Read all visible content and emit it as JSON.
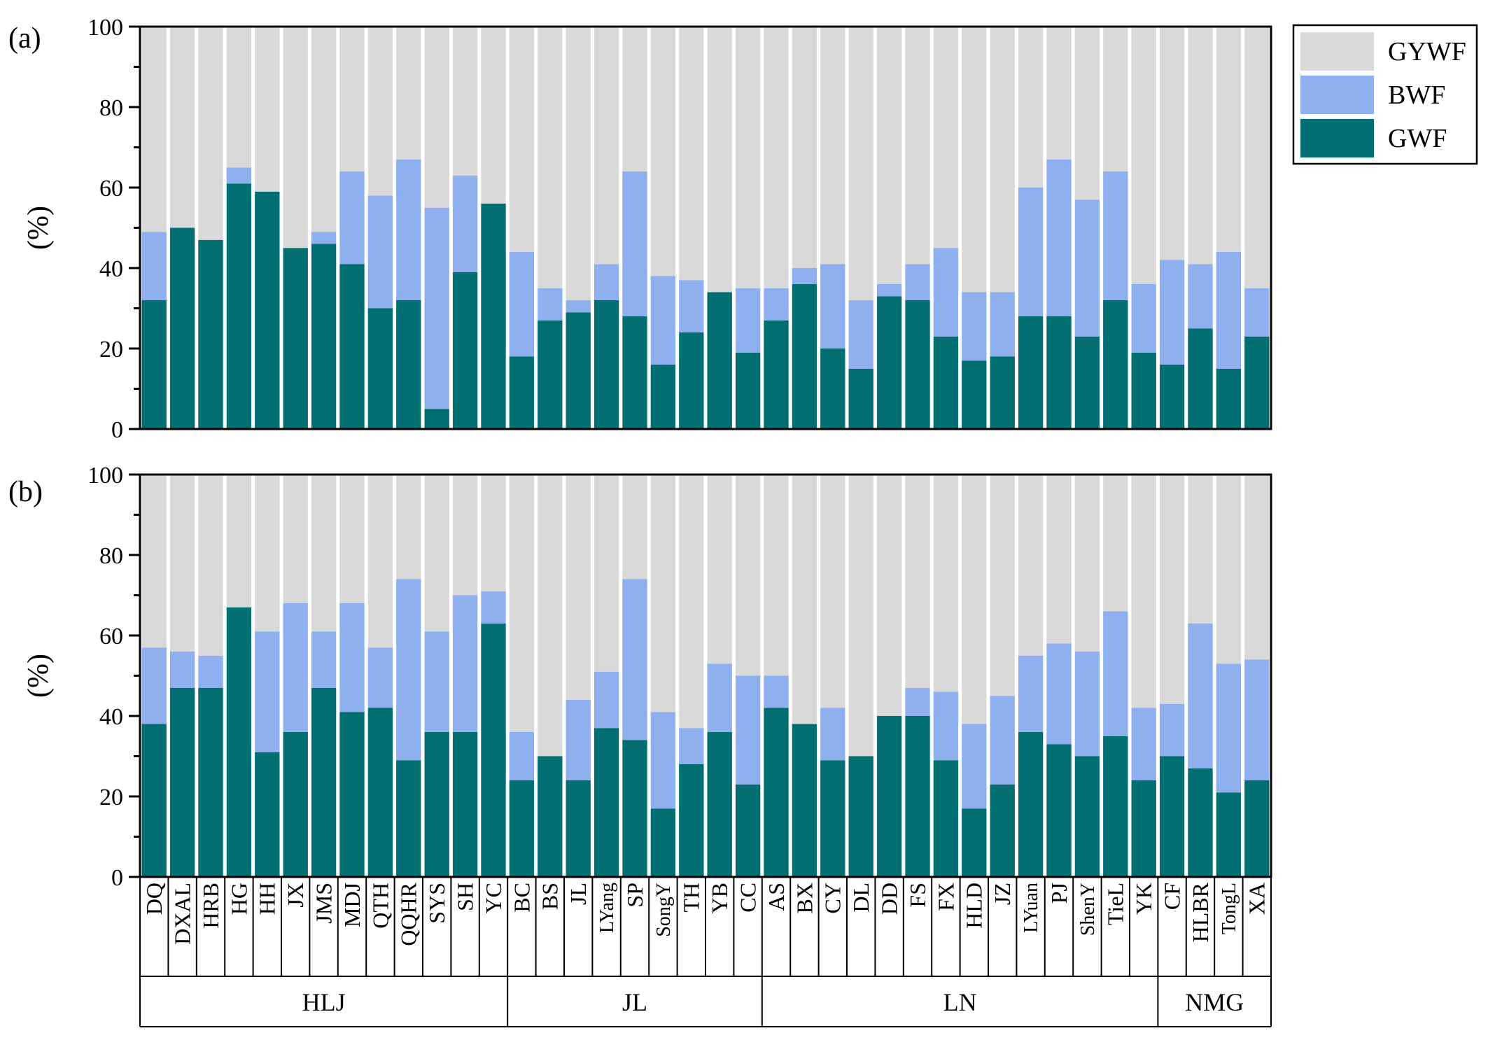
{
  "chart_data": [
    {
      "panel_label": "(a)",
      "type": "bar",
      "stacked": true,
      "ylabel": "(%)",
      "ylim": [
        0,
        100
      ],
      "yticks": [
        0,
        20,
        40,
        60,
        80,
        100
      ],
      "series": [
        {
          "name": "GWF",
          "color": "#016E72",
          "values": [
            32,
            50,
            47,
            61,
            59,
            45,
            46,
            41,
            30,
            32,
            5,
            39,
            56,
            18,
            27,
            29,
            32,
            28,
            16,
            24,
            34,
            19,
            27,
            36,
            20,
            15,
            33,
            32,
            23,
            17,
            18,
            28,
            28,
            23,
            32,
            19,
            16,
            25,
            15,
            23
          ]
        },
        {
          "name": "BWF",
          "color": "#8EB0EF",
          "values": [
            17,
            0,
            0,
            4,
            0,
            0,
            3,
            23,
            28,
            35,
            50,
            24,
            0,
            26,
            8,
            3,
            9,
            36,
            22,
            13,
            0,
            16,
            8,
            4,
            21,
            17,
            3,
            9,
            22,
            17,
            16,
            32,
            39,
            34,
            32,
            17,
            26,
            16,
            29,
            12
          ]
        },
        {
          "name": "GYWF",
          "color": "#D9D9D9",
          "values": [
            51,
            50,
            53,
            35,
            41,
            55,
            51,
            36,
            42,
            33,
            45,
            37,
            44,
            56,
            65,
            68,
            59,
            36,
            62,
            63,
            66,
            65,
            65,
            60,
            59,
            68,
            64,
            59,
            55,
            66,
            66,
            40,
            33,
            43,
            36,
            64,
            58,
            59,
            56,
            65
          ]
        }
      ]
    },
    {
      "panel_label": "(b)",
      "type": "bar",
      "stacked": true,
      "ylabel": "(%)",
      "ylim": [
        0,
        100
      ],
      "yticks": [
        0,
        20,
        40,
        60,
        80,
        100
      ],
      "series": [
        {
          "name": "GWF",
          "color": "#016E72",
          "values": [
            38,
            47,
            47,
            67,
            31,
            36,
            47,
            41,
            42,
            29,
            36,
            36,
            63,
            24,
            30,
            24,
            37,
            34,
            17,
            28,
            36,
            23,
            42,
            38,
            29,
            30,
            40,
            40,
            29,
            17,
            23,
            36,
            33,
            30,
            35,
            24,
            30,
            27,
            21,
            24
          ]
        },
        {
          "name": "BWF",
          "color": "#8EB0EF",
          "values": [
            19,
            9,
            8,
            0,
            30,
            32,
            14,
            27,
            15,
            45,
            25,
            34,
            8,
            12,
            0,
            20,
            14,
            40,
            24,
            9,
            17,
            27,
            8,
            0,
            13,
            0,
            0,
            7,
            17,
            21,
            22,
            19,
            25,
            26,
            31,
            18,
            13,
            36,
            32,
            30
          ]
        },
        {
          "name": "GYWF",
          "color": "#D9D9D9",
          "values": [
            43,
            44,
            45,
            33,
            39,
            32,
            39,
            32,
            43,
            26,
            39,
            30,
            29,
            64,
            70,
            56,
            49,
            26,
            59,
            63,
            47,
            50,
            50,
            62,
            58,
            70,
            60,
            53,
            54,
            62,
            55,
            45,
            42,
            44,
            34,
            58,
            57,
            37,
            47,
            46
          ]
        }
      ]
    }
  ],
  "categories": [
    "DQ",
    "DXAL",
    "HRB",
    "HG",
    "HH",
    "JX",
    "JMS",
    "MDJ",
    "QTH",
    "QQHR",
    "SYS",
    "SH",
    "YC",
    "BC",
    "BS",
    "JL",
    "LYang",
    "SP",
    "SongY",
    "TH",
    "YB",
    "CC",
    "AS",
    "BX",
    "CY",
    "DL",
    "DD",
    "FS",
    "FX",
    "HLD",
    "JZ",
    "LYuan",
    "PJ",
    "ShenY",
    "TieL",
    "YK",
    "CF",
    "HLBR",
    "TongL",
    "XA"
  ],
  "groups": [
    {
      "label": "HLJ",
      "count": 13
    },
    {
      "label": "JL",
      "count": 9
    },
    {
      "label": "LN",
      "count": 14
    },
    {
      "label": "NMG",
      "count": 4
    }
  ],
  "legend": {
    "placement": "top-right",
    "entries": [
      {
        "label": "GYWF",
        "color": "#D9D9D9"
      },
      {
        "label": "BWF",
        "color": "#8EB0EF"
      },
      {
        "label": "GWF",
        "color": "#016E72"
      }
    ]
  }
}
